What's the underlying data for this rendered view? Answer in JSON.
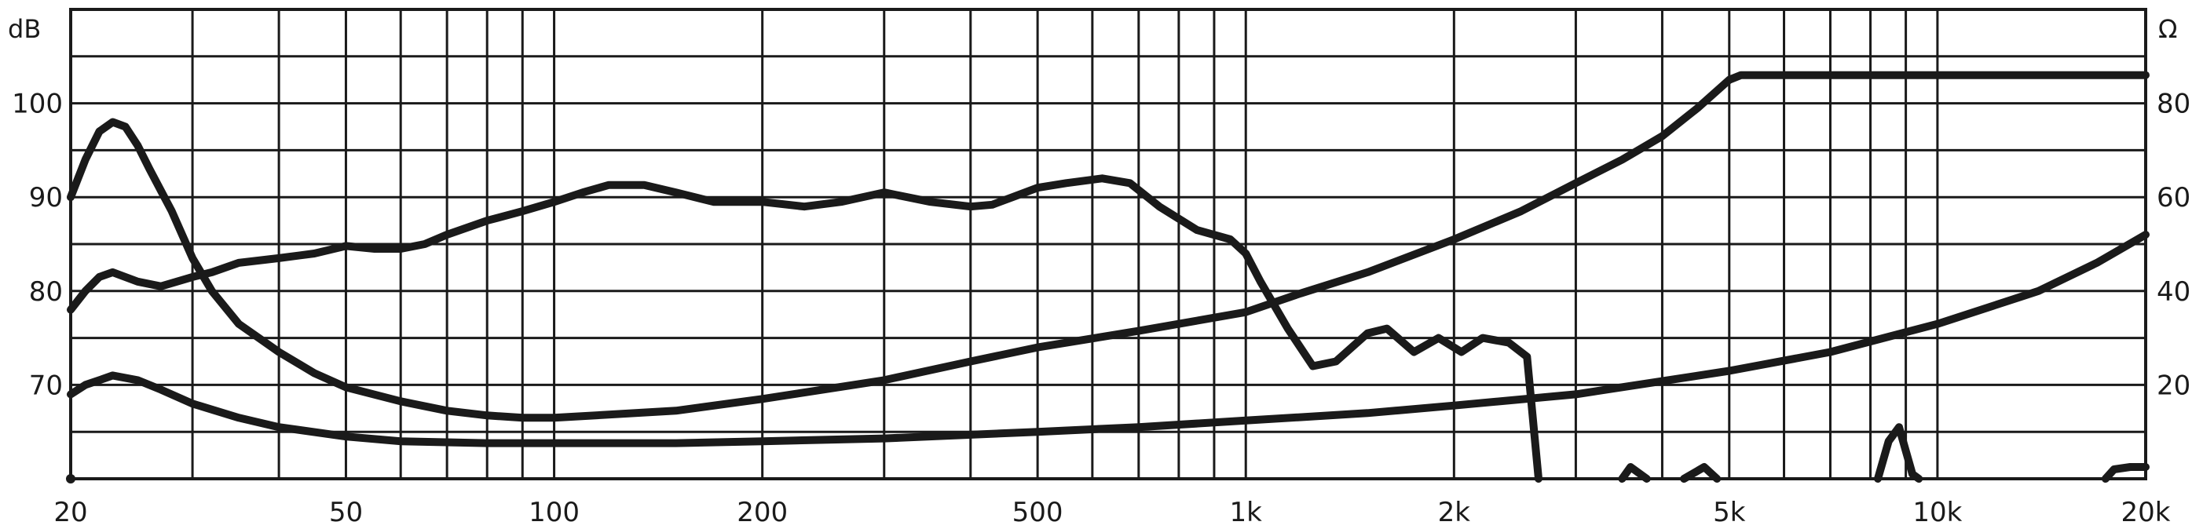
{
  "chart_data": {
    "type": "line",
    "x_scale": "log",
    "xlim": [
      20,
      20000
    ],
    "ylim_left": [
      60,
      110
    ],
    "ylim_right": [
      0,
      100
    ],
    "left_unit": "dB",
    "right_unit": "Ω",
    "grid": true,
    "x_ticks": [
      {
        "value": 20,
        "label": "20"
      },
      {
        "value": 50,
        "label": "50"
      },
      {
        "value": 100,
        "label": "100"
      },
      {
        "value": 200,
        "label": "200"
      },
      {
        "value": 500,
        "label": "500"
      },
      {
        "value": 1000,
        "label": "1k"
      },
      {
        "value": 2000,
        "label": "2k"
      },
      {
        "value": 5000,
        "label": "5k"
      },
      {
        "value": 10000,
        "label": "10k"
      },
      {
        "value": 20000,
        "label": "20k"
      }
    ],
    "left_ticks": [
      {
        "value": 70,
        "label": "70"
      },
      {
        "value": 80,
        "label": "80"
      },
      {
        "value": 90,
        "label": "90"
      },
      {
        "value": 100,
        "label": "100"
      }
    ],
    "right_ticks": [
      {
        "value": 20,
        "label": "20"
      },
      {
        "value": 40,
        "label": "40"
      },
      {
        "value": 60,
        "label": "60"
      },
      {
        "value": 80,
        "label": "80"
      }
    ],
    "series": [
      {
        "axis": "left",
        "points": [
          [
            20,
            78
          ],
          [
            21,
            80
          ],
          [
            22,
            81.5
          ],
          [
            23,
            82
          ],
          [
            25,
            81
          ],
          [
            27,
            80.5
          ],
          [
            30,
            81.5
          ],
          [
            32,
            82
          ],
          [
            35,
            83
          ],
          [
            40,
            83.5
          ],
          [
            45,
            84
          ],
          [
            50,
            84.8
          ],
          [
            55,
            84.5
          ],
          [
            60,
            84.5
          ],
          [
            65,
            85
          ],
          [
            70,
            86
          ],
          [
            80,
            87.5
          ],
          [
            90,
            88.5
          ],
          [
            100,
            89.5
          ],
          [
            110,
            90.5
          ],
          [
            120,
            91.3
          ],
          [
            135,
            91.3
          ],
          [
            150,
            90.5
          ],
          [
            170,
            89.5
          ],
          [
            200,
            89.5
          ],
          [
            230,
            89
          ],
          [
            260,
            89.5
          ],
          [
            300,
            90.5
          ],
          [
            350,
            89.5
          ],
          [
            400,
            89
          ],
          [
            430,
            89.2
          ],
          [
            460,
            90
          ],
          [
            500,
            91
          ],
          [
            550,
            91.5
          ],
          [
            620,
            92
          ],
          [
            680,
            91.5
          ],
          [
            750,
            89
          ],
          [
            850,
            86.5
          ],
          [
            950,
            85.5
          ],
          [
            1000,
            84
          ],
          [
            1050,
            81
          ],
          [
            1150,
            76
          ],
          [
            1250,
            72
          ],
          [
            1350,
            72.5
          ],
          [
            1500,
            75.5
          ],
          [
            1600,
            76
          ],
          [
            1750,
            73.5
          ],
          [
            1900,
            75
          ],
          [
            2050,
            73.5
          ],
          [
            2200,
            75
          ],
          [
            2400,
            74.5
          ],
          [
            2550,
            73
          ],
          [
            2650,
            60
          ]
        ]
      },
      {
        "axis": "left",
        "points": [
          [
            20,
            69
          ],
          [
            21,
            70
          ],
          [
            22,
            70.5
          ],
          [
            23,
            71
          ],
          [
            25,
            70.5
          ],
          [
            27,
            69.5
          ],
          [
            30,
            68
          ],
          [
            35,
            66.5
          ],
          [
            40,
            65.5
          ],
          [
            50,
            64.5
          ],
          [
            60,
            64
          ],
          [
            80,
            63.8
          ],
          [
            100,
            63.8
          ],
          [
            150,
            63.8
          ],
          [
            200,
            64
          ],
          [
            300,
            64.3
          ],
          [
            500,
            65
          ],
          [
            700,
            65.5
          ],
          [
            1000,
            66.2
          ],
          [
            1500,
            67
          ],
          [
            2000,
            67.8
          ],
          [
            3000,
            69
          ],
          [
            5000,
            71.5
          ],
          [
            7000,
            73.5
          ],
          [
            10000,
            76.5
          ],
          [
            14000,
            80
          ],
          [
            17000,
            83
          ],
          [
            20000,
            86
          ]
        ]
      },
      {
        "axis": "right",
        "points": [
          [
            20,
            60
          ],
          [
            21,
            68
          ],
          [
            22,
            74
          ],
          [
            23,
            76
          ],
          [
            24,
            75
          ],
          [
            25,
            71
          ],
          [
            26,
            66
          ],
          [
            28,
            57
          ],
          [
            30,
            47
          ],
          [
            32,
            40
          ],
          [
            35,
            33
          ],
          [
            40,
            27
          ],
          [
            45,
            22.5
          ],
          [
            50,
            19.5
          ],
          [
            60,
            16.5
          ],
          [
            70,
            14.5
          ],
          [
            80,
            13.5
          ],
          [
            90,
            13
          ],
          [
            100,
            13
          ],
          [
            150,
            14.5
          ],
          [
            200,
            17
          ],
          [
            300,
            21
          ],
          [
            400,
            25
          ],
          [
            500,
            28
          ],
          [
            700,
            31.5
          ],
          [
            1000,
            35.5
          ],
          [
            1200,
            39.5
          ],
          [
            1500,
            44
          ],
          [
            2000,
            51
          ],
          [
            2500,
            57
          ],
          [
            3000,
            63
          ],
          [
            3500,
            68
          ],
          [
            4000,
            73
          ],
          [
            4500,
            79
          ],
          [
            5000,
            85
          ],
          [
            5200,
            86
          ],
          [
            20000,
            86
          ]
        ]
      }
    ],
    "right_spikes": [
      {
        "points": [
          [
            3500,
            0
          ],
          [
            3600,
            2.5
          ],
          [
            3800,
            0
          ]
        ]
      },
      {
        "points": [
          [
            4300,
            0
          ],
          [
            4600,
            2.5
          ],
          [
            4800,
            0
          ]
        ]
      },
      {
        "points": [
          [
            8200,
            0
          ],
          [
            8500,
            8
          ],
          [
            8800,
            11
          ],
          [
            9200,
            1
          ],
          [
            9400,
            0
          ]
        ]
      },
      {
        "points": [
          [
            17500,
            0
          ],
          [
            18000,
            2
          ],
          [
            19000,
            2.5
          ],
          [
            20000,
            2.5
          ]
        ]
      }
    ]
  }
}
